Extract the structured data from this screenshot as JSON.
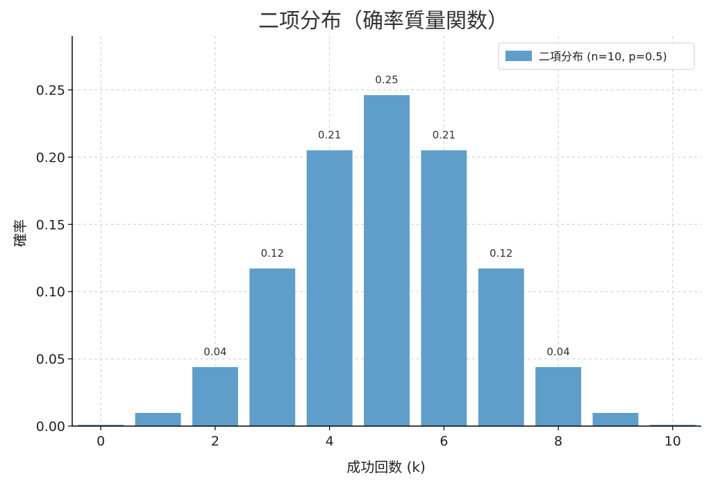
{
  "chart_data": {
    "type": "bar",
    "title": "二项分布（确率質量関数）",
    "xlabel": "成功回数 (k)",
    "ylabel": "確率",
    "x": [
      0,
      1,
      2,
      3,
      4,
      5,
      6,
      7,
      8,
      9,
      10
    ],
    "series": [
      {
        "name": "二項分布 (n=10, p=0.5)",
        "values": [
          0.001,
          0.0098,
          0.0439,
          0.1172,
          0.2051,
          0.2461,
          0.2051,
          0.1172,
          0.0439,
          0.0098,
          0.001
        ],
        "color": "#5f9ecb"
      }
    ],
    "data_labels": [
      "",
      "",
      "0.04",
      "0.12",
      "0.21",
      "0.25",
      "0.21",
      "0.12",
      "0.04",
      "",
      ""
    ],
    "xlim": [
      -0.5,
      10.5
    ],
    "ylim": [
      0,
      0.29
    ],
    "xticks": [
      "0",
      "2",
      "4",
      "6",
      "8",
      "10"
    ],
    "yticks": [
      "0.00",
      "0.05",
      "0.10",
      "0.15",
      "0.20",
      "0.25"
    ],
    "grid": true,
    "legend": "top-right"
  }
}
